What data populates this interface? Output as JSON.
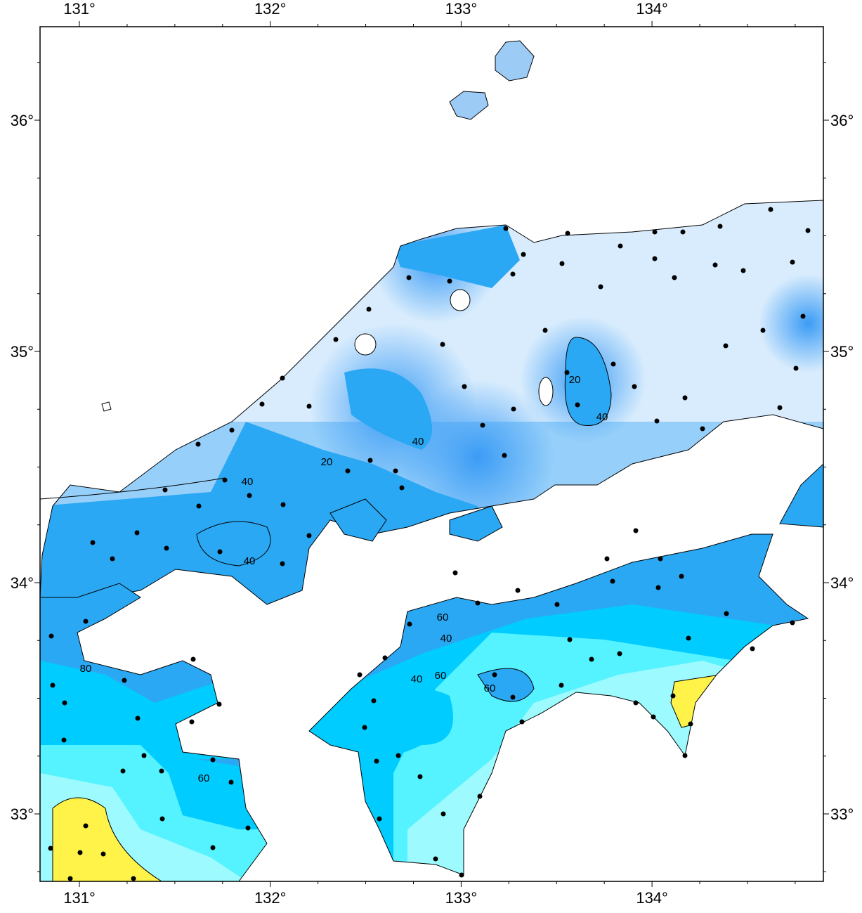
{
  "map": {
    "lon_labels": [
      "131°",
      "132°",
      "133°",
      "134°"
    ],
    "lat_labels": [
      "33°",
      "34°",
      "35°",
      "36°"
    ],
    "contour_labels": [
      "20",
      "40",
      "40",
      "20",
      "40",
      "40",
      "40",
      "60",
      "60",
      "80",
      "60",
      "60",
      "40"
    ]
  }
}
